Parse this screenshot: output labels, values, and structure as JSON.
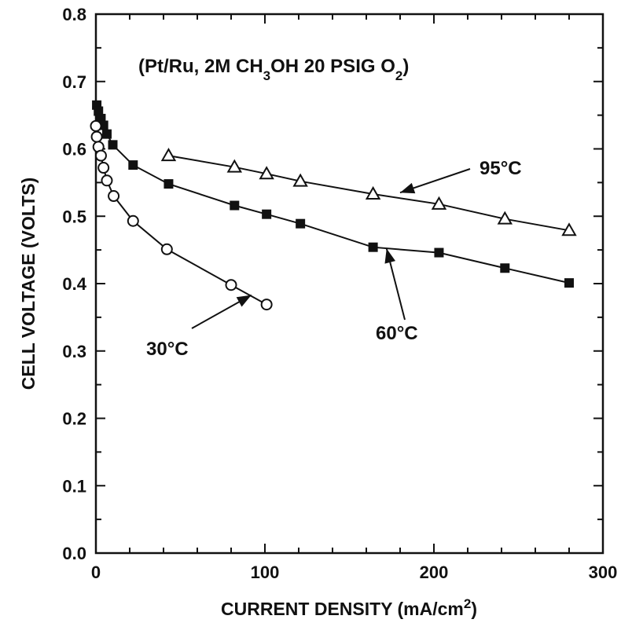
{
  "chart_data": {
    "type": "line",
    "title_parts": {
      "open": "(Pt/Ru, 2M CH",
      "sub1": "3",
      "mid": "OH 20 PSIG O",
      "sub2": "2",
      "close": ")"
    },
    "xlabel_main": "CURRENT DENSITY (mA/cm",
    "xlabel_sup": "2",
    "xlabel_close": ")",
    "ylabel": "CELL VOLTAGE (VOLTS)",
    "xlim": [
      0,
      300
    ],
    "ylim": [
      0.0,
      0.8
    ],
    "x_ticks": [
      "0",
      "100",
      "200",
      "300"
    ],
    "y_ticks": [
      "0.0",
      "0.1",
      "0.2",
      "0.3",
      "0.4",
      "0.5",
      "0.6",
      "0.7",
      "0.8"
    ],
    "grid": false,
    "series": [
      {
        "name": "95°C",
        "marker": "triangle-open",
        "points": [
          [
            43,
            0.59
          ],
          [
            82,
            0.573
          ],
          [
            101,
            0.563
          ],
          [
            121,
            0.552
          ],
          [
            164,
            0.533
          ],
          [
            203,
            0.518
          ],
          [
            242,
            0.496
          ],
          [
            280,
            0.479
          ]
        ],
        "arrow_to": [
          180,
          0.535
        ]
      },
      {
        "name": "60°C",
        "marker": "square-filled",
        "points": [
          [
            0.5,
            0.665
          ],
          [
            1.5,
            0.656
          ],
          [
            3,
            0.645
          ],
          [
            4.5,
            0.635
          ],
          [
            6.5,
            0.622
          ],
          [
            10,
            0.606
          ],
          [
            22,
            0.576
          ],
          [
            43,
            0.548
          ],
          [
            82,
            0.516
          ],
          [
            101,
            0.503
          ],
          [
            121,
            0.489
          ],
          [
            164,
            0.454
          ],
          [
            203,
            0.446
          ],
          [
            242,
            0.423
          ],
          [
            280,
            0.401
          ]
        ],
        "arrow_to": [
          172,
          0.452
        ]
      },
      {
        "name": "30°C",
        "marker": "circle-open",
        "points": [
          [
            0,
            0.634
          ],
          [
            0.5,
            0.618
          ],
          [
            1.5,
            0.603
          ],
          [
            3,
            0.59
          ],
          [
            4.5,
            0.572
          ],
          [
            6.5,
            0.553
          ],
          [
            10.5,
            0.53
          ],
          [
            22,
            0.493
          ],
          [
            42,
            0.451
          ],
          [
            80,
            0.398
          ],
          [
            101,
            0.369
          ]
        ],
        "arrow_to": [
          92,
          0.383
        ]
      }
    ]
  }
}
